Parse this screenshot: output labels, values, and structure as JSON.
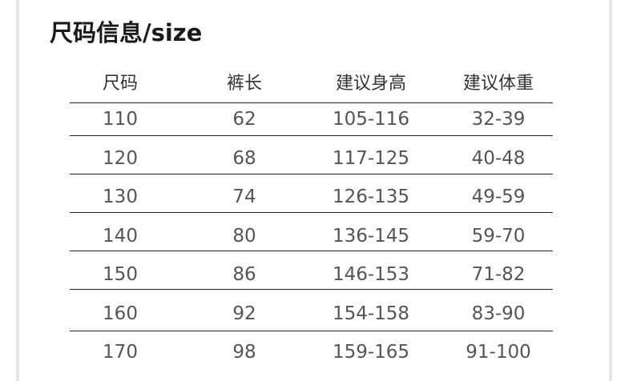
{
  "title": "尺码信息/size",
  "headers": [
    "尺码",
    "裤长",
    "建议身高",
    "建议体重"
  ],
  "rows": [
    [
      "110",
      "62",
      "105-116",
      "32-39"
    ],
    [
      "120",
      "68",
      "117-125",
      "40-48"
    ],
    [
      "130",
      "74",
      "126-135",
      "49-59"
    ],
    [
      "140",
      "80",
      "136-145",
      "59-70"
    ],
    [
      "150",
      "86",
      "146-153",
      "71-82"
    ],
    [
      "160",
      "92",
      "154-158",
      "83-90"
    ],
    [
      "170",
      "98",
      "159-165",
      "91-100"
    ]
  ]
}
